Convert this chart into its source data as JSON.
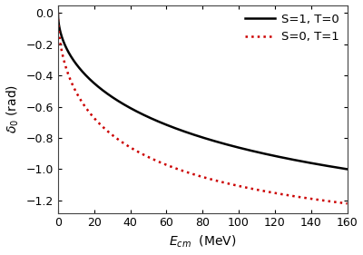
{
  "title": "",
  "xlabel": "$E_{cm}$  (MeV)",
  "ylabel": "$\\delta_0$ (rad)",
  "xlim": [
    0,
    160
  ],
  "ylim": [
    -1.28,
    0.05
  ],
  "yticks": [
    0,
    -0.2,
    -0.4,
    -0.6,
    -0.8,
    -1.0,
    -1.2
  ],
  "xticks": [
    0,
    20,
    40,
    60,
    80,
    100,
    120,
    140,
    160
  ],
  "curve1_label": "S=1, T=0",
  "curve1_color": "#000000",
  "curve1_style": "solid",
  "curve1_linewidth": 1.8,
  "curve2_label": "S=0, T=1",
  "curve2_color": "#cc0000",
  "curve2_style": "dotted",
  "curve2_linewidth": 1.8,
  "background_color": "#ffffff",
  "legend_loc": "upper right",
  "legend_fontsize": 9.5
}
